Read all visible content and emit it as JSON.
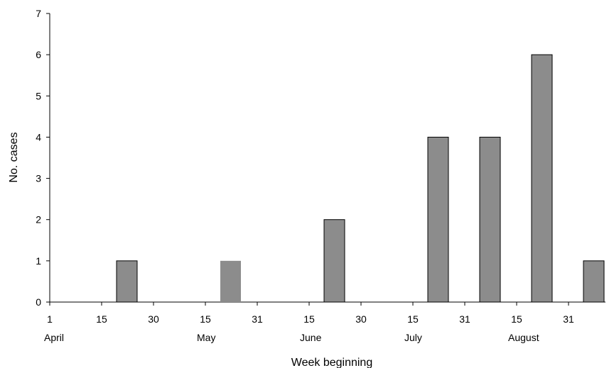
{
  "chart_data": {
    "type": "bar",
    "title": "",
    "xlabel": "Week beginning",
    "ylabel": "No. cases",
    "ylim": [
      0,
      7
    ],
    "yticks": [
      0,
      1,
      2,
      3,
      4,
      5,
      6,
      7
    ],
    "grid": false,
    "legend": "none",
    "x_day_ticks": [
      "1",
      "15",
      "30",
      "15",
      "31",
      "15",
      "30",
      "15",
      "31",
      "15",
      "31"
    ],
    "x_month_labels": [
      "April",
      "May",
      "June",
      "July",
      "August"
    ],
    "bars": [
      {
        "week": "April 22",
        "value": 1
      },
      {
        "week": "May 22",
        "value": 1
      },
      {
        "week": "June 22",
        "value": 2
      },
      {
        "week": "July 22",
        "value": 4
      },
      {
        "week": "August 7",
        "value": 4
      },
      {
        "week": "August 22",
        "value": 6
      },
      {
        "week": "September 7",
        "value": 1
      }
    ],
    "colors": {
      "bar_fill": "#8c8c8c",
      "bar_stroke": "#000000",
      "axis": "#000000"
    }
  }
}
